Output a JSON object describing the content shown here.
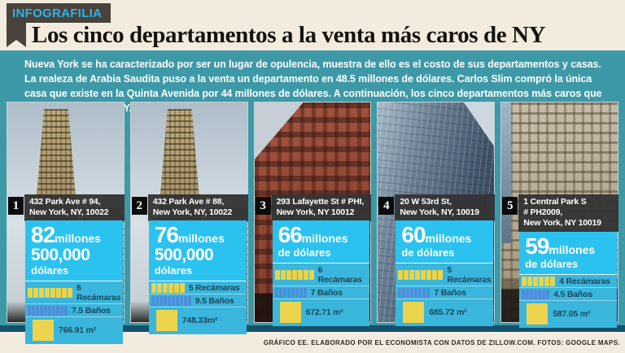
{
  "banner": {
    "label": "INFOGRAFILIA"
  },
  "title": "Los cinco departamentos a la venta más caros de NY",
  "intro": "Nueva York se ha caracterizado por ser un lugar de opulencia, muestra de ello es el costo de sus departamentos y casas. La realeza de Arabia Saudita puso a la venta un departamento en 48.5 millones de dólares. Carlos Slim compró la única casa que existe en la Quinta Avenida por 44 millones de dólares.  A continuación, los cinco departamentos más caros que están a la venta en NY.",
  "footer": "GRÁFICO EE. ELABORADO POR EL ECONOMISTA CON DATOS DE ZILLOW.COM. FOTOS: GOOGLE MAPS.",
  "colors": {
    "teal_background": "#3d99a8",
    "dark_strip": "#14506a",
    "cream": "#f4ebdf",
    "price_cyan": "#2cc2f0",
    "details_cyan": "#3ab6dc",
    "banner_bg": "#4a433c",
    "banner_text": "#2cb4e8",
    "bedroom_bar_yellow": "#e8d44c",
    "bathroom_bar_blue": "#4a8fd9",
    "area_square_yellow": "#ecd44e"
  },
  "listings": [
    {
      "rank": "1",
      "address1": "432 Park Ave # 94,",
      "address2": "New York, NY, 10022",
      "address3": "",
      "amount": "82",
      "unit": "millones",
      "mid": "500,000",
      "sub": "dólares",
      "bedrooms": "6 Recámaras",
      "bathrooms": "7.5 Baños",
      "area": "766.91 m²",
      "rec_bars": 8,
      "bath_bars": 10
    },
    {
      "rank": "2",
      "address1": "432 Park Ave # 88,",
      "address2": "New York, NY, 10022",
      "address3": "",
      "amount": "76",
      "unit": "millones",
      "mid": "500,000",
      "sub": "dólares",
      "bedrooms": "5 Recámaras",
      "bathrooms": "9.5 Baños",
      "area": "748.33m²",
      "rec_bars": 6,
      "bath_bars": 10
    },
    {
      "rank": "3",
      "address1": "293 Lafayette St # PHI,",
      "address2": "New York, NY 10012",
      "address3": "",
      "amount": "66",
      "unit": "millones",
      "mid": "",
      "sub": "de dólares",
      "bedrooms": "6 Recámaras",
      "bathrooms": "7 Baños",
      "area": "672.71 m²",
      "rec_bars": 7,
      "bath_bars": 8
    },
    {
      "rank": "4",
      "address1": "20 W 53rd St,",
      "address2": "New York, NY, 10019",
      "address3": "",
      "amount": "60",
      "unit": "millones",
      "mid": "",
      "sub": "de dólares",
      "bedrooms": "5 Recámaras",
      "bathrooms": "7 Baños",
      "area": "685.72 m²",
      "rec_bars": 8,
      "bath_bars": 8
    },
    {
      "rank": "5",
      "address1": "1 Central Park S",
      "address2": "# PH2009,",
      "address3": "New York, NY 10019",
      "amount": "59",
      "unit": "millones",
      "mid": "",
      "sub": "de dólares",
      "bedrooms": "4 Recámaras",
      "bathrooms": "4.5 Baños",
      "area": "587.05 m²",
      "rec_bars": 6,
      "bath_bars": 7
    }
  ]
}
